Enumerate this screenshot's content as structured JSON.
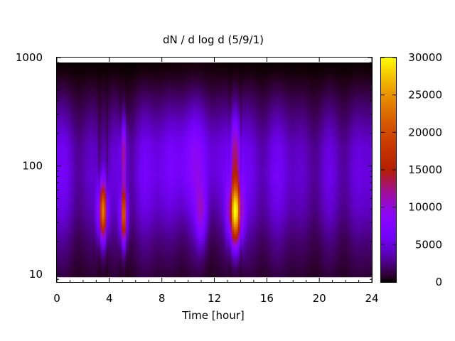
{
  "chart_data": {
    "type": "heatmap",
    "title": "dN / d log d (5/9/1)",
    "xlabel": "Time [hour]",
    "ylabel": "",
    "xlim": [
      0,
      24
    ],
    "ylim": [
      8.5,
      1000
    ],
    "y_scale": "log",
    "x_ticks": [
      0,
      4,
      8,
      12,
      16,
      20,
      24
    ],
    "y_ticks": [
      10,
      100,
      1000
    ],
    "colorbar": {
      "min": 0,
      "max": 30000,
      "ticks": [
        0,
        5000,
        10000,
        15000,
        20000,
        25000,
        30000
      ],
      "palette": "gnuplot-black-purple-red-yellow"
    },
    "data_y_range": [
      9.5,
      900
    ],
    "base_profile": [
      {
        "d": 10,
        "v": 1200
      },
      {
        "d": 20,
        "v": 2500
      },
      {
        "d": 40,
        "v": 4500
      },
      {
        "d": 80,
        "v": 5500
      },
      {
        "d": 150,
        "v": 5000
      },
      {
        "d": 300,
        "v": 2800
      },
      {
        "d": 500,
        "v": 1200
      },
      {
        "d": 700,
        "v": 300
      },
      {
        "d": 900,
        "v": 0
      }
    ],
    "bursts": [
      {
        "t": 3.5,
        "d": 38,
        "peak": 21000,
        "t_width": 0.25,
        "logd_width": 0.18
      },
      {
        "t": 5.1,
        "d": 35,
        "peak": 19000,
        "t_width": 0.2,
        "logd_width": 0.18
      },
      {
        "t": 5.1,
        "d": 130,
        "peak": 9000,
        "t_width": 0.2,
        "logd_width": 0.2
      },
      {
        "t": 13.6,
        "d": 37,
        "peak": 26000,
        "t_width": 0.35,
        "logd_width": 0.2
      },
      {
        "t": 13.6,
        "d": 130,
        "peak": 8000,
        "t_width": 0.3,
        "logd_width": 0.25
      },
      {
        "t": 11.0,
        "d": 35,
        "peak": 6000,
        "t_width": 0.3,
        "logd_width": 0.2
      },
      {
        "t": 10.5,
        "d": 120,
        "peak": 3500,
        "t_width": 1.5,
        "logd_width": 0.35
      }
    ]
  }
}
